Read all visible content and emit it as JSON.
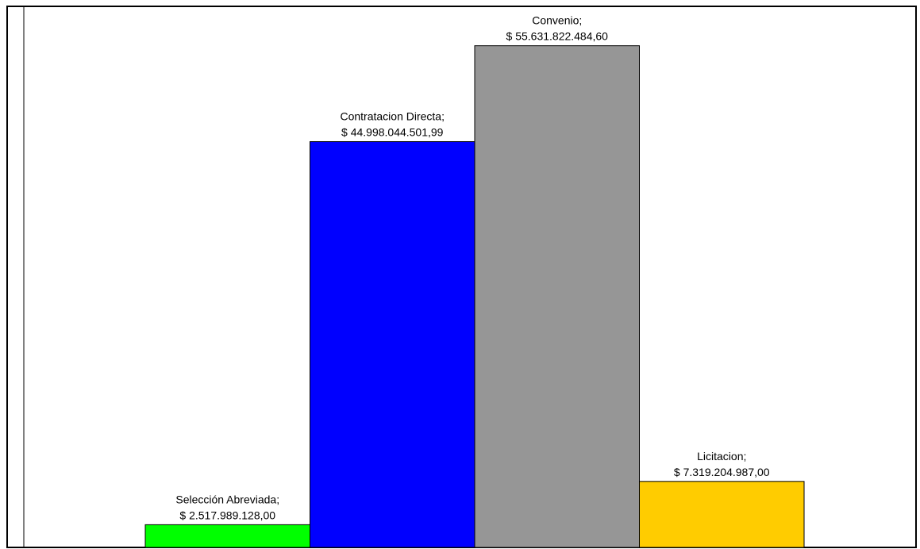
{
  "chart_data": {
    "type": "bar",
    "categories": [
      "Selección Abreviada",
      "Contratacion Directa",
      "Convenio",
      "Licitacion"
    ],
    "values": [
      2517989128.0,
      44998044501.99,
      55631822484.6,
      7319204987.0
    ],
    "data_labels": [
      {
        "category": "Selección Abreviada;",
        "value": "$ 2.517.989.128,00"
      },
      {
        "category": "Contratacion Directa;",
        "value": "$ 44.998.044.501,99"
      },
      {
        "category": "Convenio;",
        "value": "$ 55.631.822.484,60"
      },
      {
        "category": "Licitacion;",
        "value": "$ 7.319.204.987,00"
      }
    ],
    "colors": [
      "#00ff00",
      "#0000ff",
      "#969696",
      "#ffcc00"
    ],
    "title": "",
    "xlabel": "",
    "ylabel": "",
    "ylim": [
      0,
      60000000000
    ],
    "grid": false,
    "legend": "none"
  }
}
